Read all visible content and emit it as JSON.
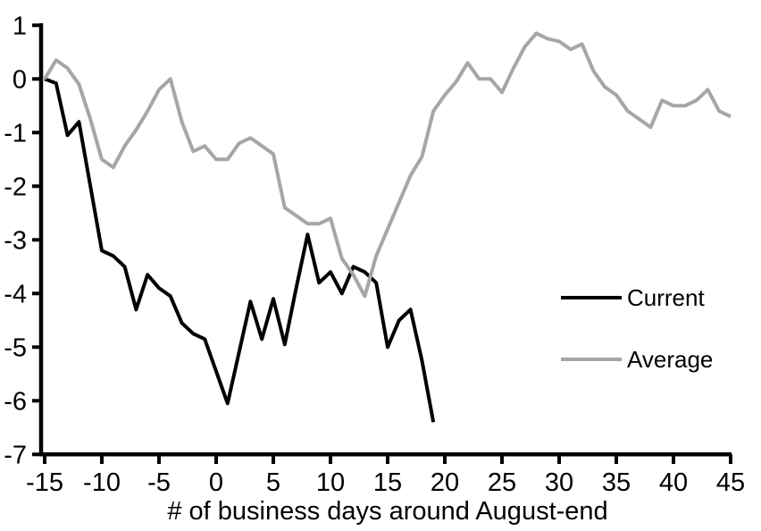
{
  "colors": {
    "background": "#ffffff",
    "axis": "#000000",
    "current_series": "#000000",
    "average_series": "#a6a6a6"
  },
  "legend": {
    "position": "middle-right",
    "entries": [
      {
        "label": "Current",
        "color": "#000000"
      },
      {
        "label": "Average",
        "color": "#a6a6a6"
      }
    ]
  },
  "chart_data": {
    "type": "line",
    "title": "",
    "xlabel": "# of business days around August-end",
    "ylabel": "",
    "xlim": [
      -15,
      45
    ],
    "ylim": [
      -7,
      1
    ],
    "grid": false,
    "x_ticks": [
      -15,
      -10,
      -5,
      0,
      5,
      10,
      15,
      20,
      25,
      30,
      35,
      40,
      45
    ],
    "y_ticks": [
      1,
      0,
      -1,
      -2,
      -3,
      -4,
      -5,
      -6,
      -7
    ],
    "x_step": 1,
    "series": [
      {
        "name": "Current",
        "color": "#000000",
        "x_start": -15,
        "values": [
          0,
          -0.08,
          -1.05,
          -0.8,
          -2.0,
          -3.2,
          -3.3,
          -3.5,
          -4.3,
          -3.65,
          -3.9,
          -4.05,
          -4.55,
          -4.75,
          -4.85,
          -5.45,
          -6.05,
          -5.1,
          -4.15,
          -4.85,
          -4.1,
          -4.95,
          -3.9,
          -2.9,
          -3.8,
          -3.6,
          -4.0,
          -3.5,
          -3.6,
          -3.8,
          -5.0,
          -4.5,
          -4.3,
          -5.25,
          -6.4
        ]
      },
      {
        "name": "Average",
        "color": "#a6a6a6",
        "x_start": -15,
        "values": [
          0,
          0.35,
          0.2,
          -0.1,
          -0.75,
          -1.5,
          -1.65,
          -1.25,
          -0.95,
          -0.6,
          -0.2,
          0.0,
          -0.8,
          -1.35,
          -1.25,
          -1.5,
          -1.5,
          -1.2,
          -1.1,
          -1.25,
          -1.4,
          -2.4,
          -2.55,
          -2.7,
          -2.7,
          -2.6,
          -3.35,
          -3.65,
          -4.05,
          -3.3,
          -2.8,
          -2.3,
          -1.8,
          -1.45,
          -0.6,
          -0.3,
          -0.05,
          0.3,
          0.0,
          0.0,
          -0.25,
          0.2,
          0.6,
          0.85,
          0.75,
          0.7,
          0.55,
          0.65,
          0.15,
          -0.15,
          -0.3,
          -0.6,
          -0.75,
          -0.9,
          -0.4,
          -0.5,
          -0.5,
          -0.4,
          -0.2,
          -0.6,
          -0.7
        ]
      }
    ]
  }
}
